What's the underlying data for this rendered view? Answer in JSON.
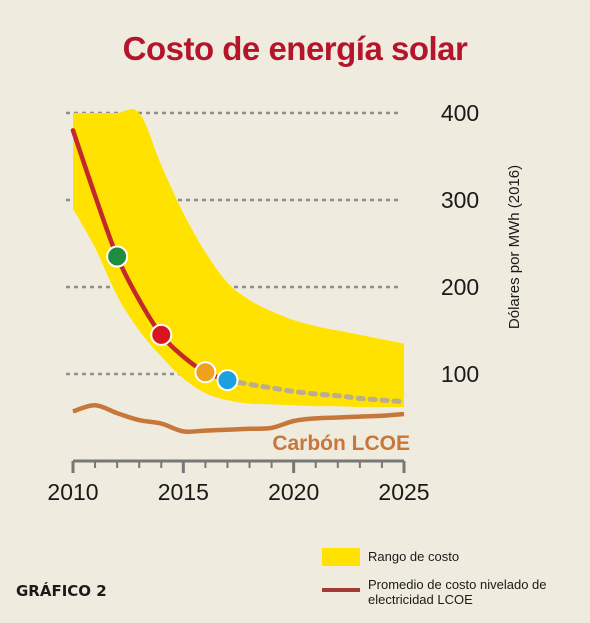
{
  "figure_label": "GRÁFICO 2",
  "colors": {
    "background": "#efecdf",
    "title": "#b5152b",
    "range_fill": "#ffe200",
    "lcoe_line": "#c3282a",
    "projection_dots": "#bcae8c",
    "coal_line": "#c8773a",
    "marker_green": "#1e8e3e",
    "marker_red": "#d8141e",
    "marker_orange": "#f0a01c",
    "marker_blue": "#1e9fe0"
  },
  "legend": [
    {
      "label": "Rango de costo",
      "kind": "area",
      "color": "#ffe200"
    },
    {
      "label": "Promedio de costo nivelado de electricidad LCOE",
      "kind": "line",
      "color": "#a33a36"
    }
  ],
  "chart_data": {
    "type": "line",
    "title": "Costo de energía solar",
    "ylabel": "Dólares por MWh (2016)",
    "xlabel": "",
    "xlim": [
      2010,
      2025
    ],
    "ylim": [
      0,
      400
    ],
    "x_ticks": [
      2010,
      2015,
      2020,
      2025
    ],
    "y_ticks": [
      100,
      200,
      300,
      400
    ],
    "grid": "dotted horizontal",
    "series": [
      {
        "name": "Rango de costo",
        "kind": "range",
        "x": [
          2010,
          2011,
          2012,
          2013,
          2014,
          2015,
          2016,
          2017,
          2018,
          2019,
          2020,
          2021,
          2022,
          2023,
          2024,
          2025
        ],
        "upper": [
          400,
          400,
          400,
          400,
          340,
          285,
          240,
          205,
          185,
          172,
          162,
          155,
          150,
          145,
          140,
          135
        ],
        "lower": [
          290,
          245,
          190,
          150,
          120,
          95,
          78,
          70,
          66,
          65,
          64,
          63,
          63,
          62,
          62,
          62
        ]
      },
      {
        "name": "Promedio de costo nivelado de electricidad LCOE",
        "kind": "line",
        "x": [
          2010,
          2011,
          2012,
          2013,
          2014,
          2015,
          2016,
          2017
        ],
        "values": [
          380,
          305,
          235,
          185,
          145,
          120,
          102,
          93
        ]
      },
      {
        "name": "Promedio de costo nivelado de electricidad LCOE",
        "kind": "projection",
        "x": [
          2017,
          2018,
          2019,
          2020,
          2021,
          2022,
          2023,
          2024,
          2025
        ],
        "values": [
          93,
          88,
          84,
          80,
          77,
          75,
          72,
          70,
          68
        ]
      },
      {
        "name": "Carbón LCOE",
        "kind": "line",
        "x": [
          2010,
          2011,
          2012,
          2013,
          2014,
          2015,
          2016,
          2017,
          2018,
          2019,
          2020,
          2021,
          2022,
          2023,
          2024,
          2025
        ],
        "values": [
          57,
          64,
          55,
          47,
          43,
          34,
          35,
          36,
          37,
          38,
          46,
          49,
          50,
          51,
          52,
          54
        ]
      }
    ],
    "markers": [
      {
        "x": 2012,
        "y": 235,
        "color": "#1e8e3e"
      },
      {
        "x": 2014,
        "y": 145,
        "color": "#d8141e"
      },
      {
        "x": 2016,
        "y": 102,
        "color": "#f0a01c"
      },
      {
        "x": 2017,
        "y": 93,
        "color": "#1e9fe0"
      }
    ],
    "annotations": [
      {
        "text": "Carbón LCOE",
        "x": 2020,
        "y": 12
      }
    ]
  }
}
